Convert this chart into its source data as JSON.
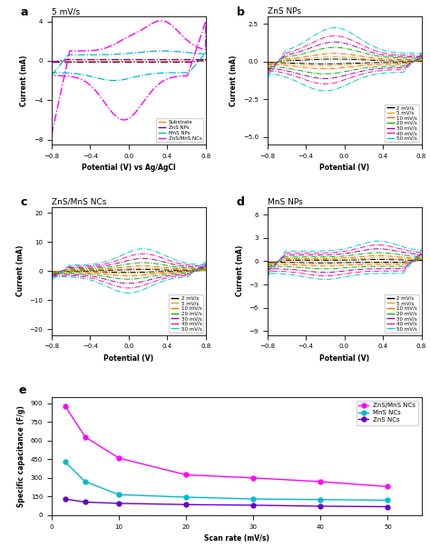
{
  "panel_a_title": "5 mV/s",
  "panel_b_title": "ZnS NPs",
  "panel_c_title": "ZnS/MnS NCs",
  "panel_d_title": "MnS NPs",
  "xlabel_a": "Potential (V) vs Ag/AgCl",
  "xlabel_bcd": "Potential (V)",
  "ylabel_abcd": "Current (mA)",
  "ylabel_e": "Specific capacitance (F/g)",
  "xlabel_e": "Scan rate (mV/s)",
  "ylim_a": [
    -8.5,
    4.5
  ],
  "ylim_b": [
    -5.5,
    3.0
  ],
  "ylim_c": [
    -22,
    22
  ],
  "ylim_d": [
    -9.5,
    7.0
  ],
  "xlim": [
    -0.8,
    0.8
  ],
  "scan_rates": [
    2,
    5,
    10,
    20,
    30,
    40,
    50
  ],
  "colors_bcd": [
    "#000000",
    "#DAA520",
    "#FF6600",
    "#00BB00",
    "#AA00AA",
    "#FF1493",
    "#00CCCC"
  ],
  "color_substrate": "#FF8C00",
  "color_zns": "#6600CC",
  "color_mns": "#00BBCC",
  "color_znsmns": "#FF00FF",
  "sp_cap_znsmns": [
    880,
    630,
    460,
    325,
    300,
    270,
    230
  ],
  "sp_cap_mns": [
    430,
    270,
    165,
    145,
    130,
    125,
    120
  ],
  "sp_cap_zns": [
    130,
    105,
    95,
    85,
    80,
    72,
    68
  ],
  "legend_a": [
    "Substrate",
    "ZnS NPs",
    "MnS NPs",
    "ZnS/MnS NCs"
  ],
  "legend_bcd": [
    "2 mV/s",
    "5 mV/s",
    "10 mV/s",
    "20 mV/s",
    "30 mV/s",
    "40 mV/s",
    "50 mV/s"
  ]
}
